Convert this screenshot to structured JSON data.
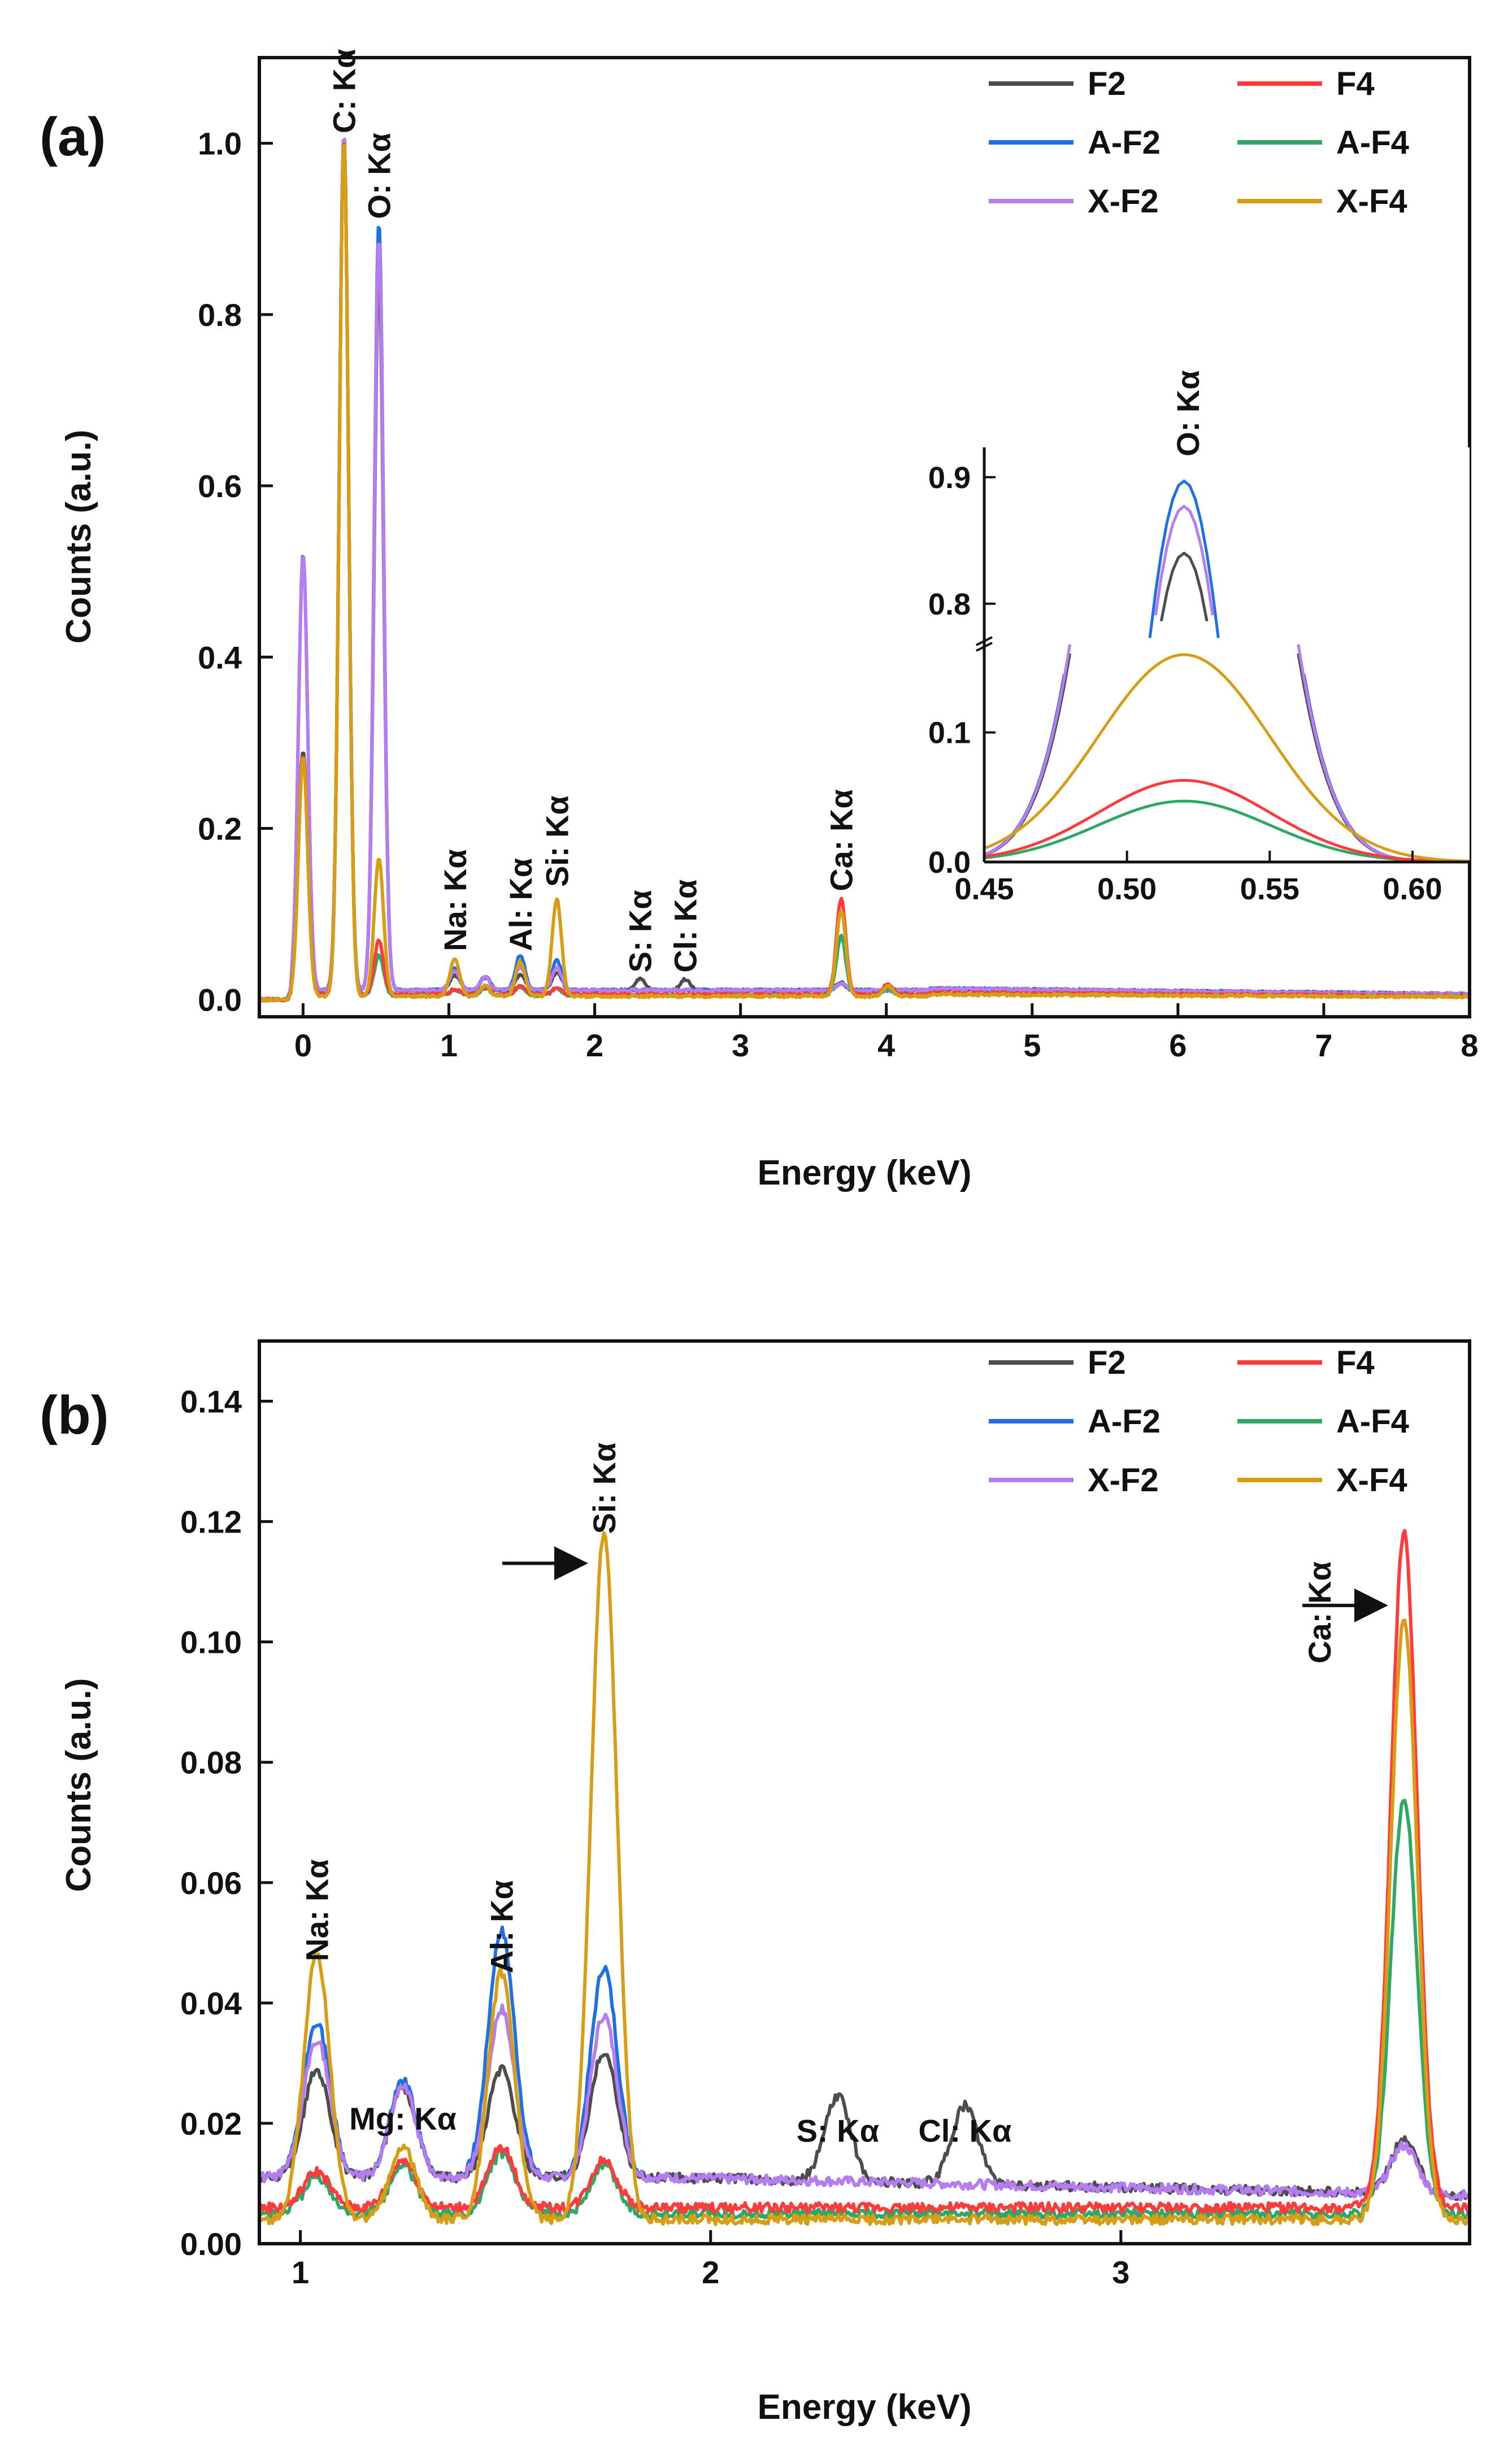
{
  "figure": {
    "legend_entries": [
      {
        "name": "F2",
        "color": "#4d4d4d"
      },
      {
        "name": "F4",
        "color": "#ff3b3b"
      },
      {
        "name": "A-F2",
        "color": "#1f6fe5"
      },
      {
        "name": "A-F4",
        "color": "#2ea866"
      },
      {
        "name": "X-F2",
        "color": "#b77cf0"
      },
      {
        "name": "X-F4",
        "color": "#d79d14"
      }
    ]
  },
  "chart_data": [
    {
      "panel": "(a)",
      "type": "line",
      "xlabel": "Energy (keV)",
      "ylabel": "Counts (a.u.)",
      "xlim": [
        -0.3,
        8
      ],
      "ylim": [
        -0.02,
        1.1
      ],
      "xticks": [
        0,
        1,
        2,
        3,
        4,
        5,
        6,
        7,
        8
      ],
      "xtick_labels": [
        "0",
        "1",
        "2",
        "3",
        "4",
        "5",
        "6",
        "7",
        "8"
      ],
      "yticks": [
        0.0,
        0.2,
        0.4,
        0.6,
        0.8,
        1.0
      ],
      "ytick_labels": [
        "0.0",
        "0.2",
        "0.4",
        "0.6",
        "0.8",
        "1.0"
      ],
      "legend_position": "top-right",
      "annotations": [
        {
          "text": "C: Kα",
          "x": 0.28
        },
        {
          "text": "O: Kα",
          "x": 0.52
        },
        {
          "text": "Na: Kα",
          "x": 1.04
        },
        {
          "text": "Al: Kα",
          "x": 1.49
        },
        {
          "text": "Si: Kα",
          "x": 1.74
        },
        {
          "text": "S: Kα",
          "x": 2.31
        },
        {
          "text": "Cl: Kα",
          "x": 2.62
        },
        {
          "text": "Ca: Kα",
          "x": 3.69
        }
      ],
      "series": [
        {
          "name": "F2",
          "peaks": [
            [
              0.0,
              0.28
            ],
            [
              0.28,
              1.0
            ],
            [
              0.52,
              0.84
            ],
            [
              1.04,
              0.018
            ],
            [
              1.25,
              0.015
            ],
            [
              1.49,
              0.018
            ],
            [
              1.74,
              0.021
            ],
            [
              2.31,
              0.014
            ],
            [
              2.62,
              0.013
            ],
            [
              3.69,
              0.009
            ]
          ],
          "baseline": 0.011
        },
        {
          "name": "F4",
          "peaks": [
            [
              0.0,
              0.28
            ],
            [
              0.28,
              1.0
            ],
            [
              0.52,
              0.063
            ],
            [
              1.04,
              0.006
            ],
            [
              1.25,
              0.008
            ],
            [
              1.49,
              0.01
            ],
            [
              1.74,
              0.008
            ],
            [
              3.69,
              0.112
            ],
            [
              4.01,
              0.012
            ]
          ],
          "baseline": 0.006
        },
        {
          "name": "A-F2",
          "peaks": [
            [
              0.0,
              0.51
            ],
            [
              0.28,
              1.0
            ],
            [
              0.52,
              0.897
            ],
            [
              1.04,
              0.026
            ],
            [
              1.25,
              0.016
            ],
            [
              1.49,
              0.041
            ],
            [
              1.74,
              0.035
            ],
            [
              3.69,
              0.008
            ]
          ],
          "baseline": 0.011
        },
        {
          "name": "A-F4",
          "peaks": [
            [
              0.0,
              0.28
            ],
            [
              0.28,
              1.0
            ],
            [
              0.52,
              0.047
            ],
            [
              1.04,
              0.006
            ],
            [
              1.25,
              0.008
            ],
            [
              1.49,
              0.01
            ],
            [
              1.74,
              0.008
            ],
            [
              3.69,
              0.069
            ],
            [
              4.01,
              0.008
            ]
          ],
          "baseline": 0.005
        },
        {
          "name": "X-F2",
          "peaks": [
            [
              0.0,
              0.51
            ],
            [
              0.28,
              1.0
            ],
            [
              0.52,
              0.877
            ],
            [
              1.04,
              0.023
            ],
            [
              1.25,
              0.015
            ],
            [
              1.49,
              0.028
            ],
            [
              1.74,
              0.027
            ],
            [
              3.69,
              0.008
            ]
          ],
          "baseline": 0.011
        },
        {
          "name": "X-F4",
          "peaks": [
            [
              0.0,
              0.28
            ],
            [
              0.28,
              1.0
            ],
            [
              0.52,
              0.16
            ],
            [
              1.04,
              0.044
            ],
            [
              1.25,
              0.012
            ],
            [
              1.49,
              0.041
            ],
            [
              1.74,
              0.114
            ],
            [
              3.69,
              0.1
            ],
            [
              4.01,
              0.012
            ]
          ],
          "baseline": 0.004
        }
      ],
      "inset": {
        "xlim": [
          0.45,
          0.62
        ],
        "xticks": [
          0.45,
          0.5,
          0.55,
          0.6
        ],
        "xtick_labels": [
          "0.45",
          "0.50",
          "0.55",
          "0.60"
        ],
        "ytick_labels": [
          "0.0",
          "0.1",
          "0.8",
          "0.9"
        ],
        "lower_ylim": [
          0.0,
          0.17
        ],
        "upper_ylim": [
          0.77,
          0.92
        ],
        "annotation": "O: Kα"
      }
    },
    {
      "panel": "(b)",
      "type": "line",
      "xlabel": "Energy (keV)",
      "ylabel": "Counts (a.u.)",
      "xlim": [
        0.9,
        3.85
      ],
      "ylim": [
        0.0,
        0.15
      ],
      "xticks": [
        1,
        2,
        3
      ],
      "xtick_labels": [
        "1",
        "2",
        "3"
      ],
      "yticks": [
        0.0,
        0.02,
        0.04,
        0.06,
        0.08,
        0.1,
        0.12,
        0.14
      ],
      "ytick_labels": [
        "0.00",
        "0.02",
        "0.04",
        "0.06",
        "0.08",
        "0.10",
        "0.12",
        "0.14"
      ],
      "legend_position": "top-right",
      "annotations": [
        {
          "text": "Na: Kα",
          "x": 1.04
        },
        {
          "text": "Mg: Kα",
          "x": 1.25
        },
        {
          "text": "Al: Kα",
          "x": 1.49
        },
        {
          "text": "Si: Kα",
          "x": 1.74
        },
        {
          "text": "S: Kα",
          "x": 2.31
        },
        {
          "text": "Cl: Kα",
          "x": 2.62
        },
        {
          "text": "Ca: Kα",
          "x": 3.69
        }
      ],
      "arrows": [
        {
          "target": "Si: Kα",
          "x": 1.74,
          "y": 0.114
        },
        {
          "target": "Ca: Kα",
          "x": 3.69,
          "y": 0.107
        }
      ]
    }
  ]
}
